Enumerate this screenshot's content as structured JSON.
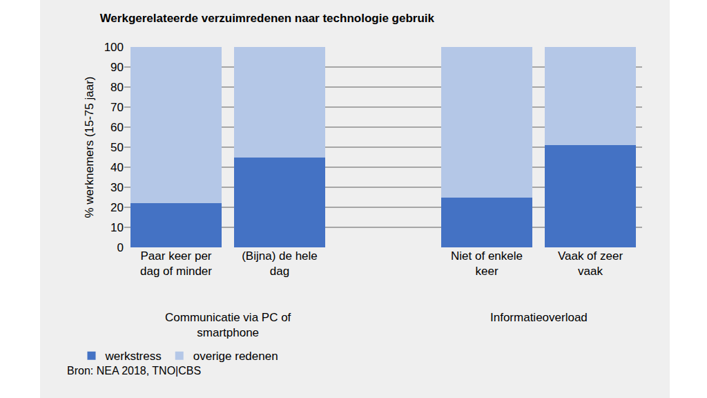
{
  "chart_data": {
    "type": "bar",
    "title": "Werkgerelateerde verzuimredenen naar technologie gebruik",
    "y_label": "% werknemers (15-75 jaar)",
    "categories": [
      "Paar keer per dag of minder",
      "(Bijna) de hele dag",
      null,
      "Niet of enkele keer",
      "Vaak of zeer vaak"
    ],
    "groups": [
      {
        "name": "Communicatie via PC of smartphone",
        "categories": [
          "Paar keer per dag of minder",
          "(Bijna) de hele dag"
        ]
      },
      {
        "name": "Informatieoverload",
        "categories": [
          "Niet of enkele keer",
          "Vaak of zeer vaak"
        ]
      }
    ],
    "series": [
      {
        "name": "werkstress",
        "color": "#4472c4",
        "values": [
          22,
          45,
          null,
          25,
          51
        ]
      },
      {
        "name": "overige redenen",
        "color": "#b4c7e7",
        "values": [
          78,
          55,
          null,
          75,
          49
        ]
      }
    ],
    "stacked": true,
    "ylim": [
      0,
      100
    ],
    "yticks": [
      0,
      10,
      20,
      30,
      40,
      50,
      60,
      70,
      80,
      90,
      100
    ],
    "grid": true,
    "legend": "bottom left",
    "source": "Bron: NEA 2018, TNO|CBS"
  }
}
